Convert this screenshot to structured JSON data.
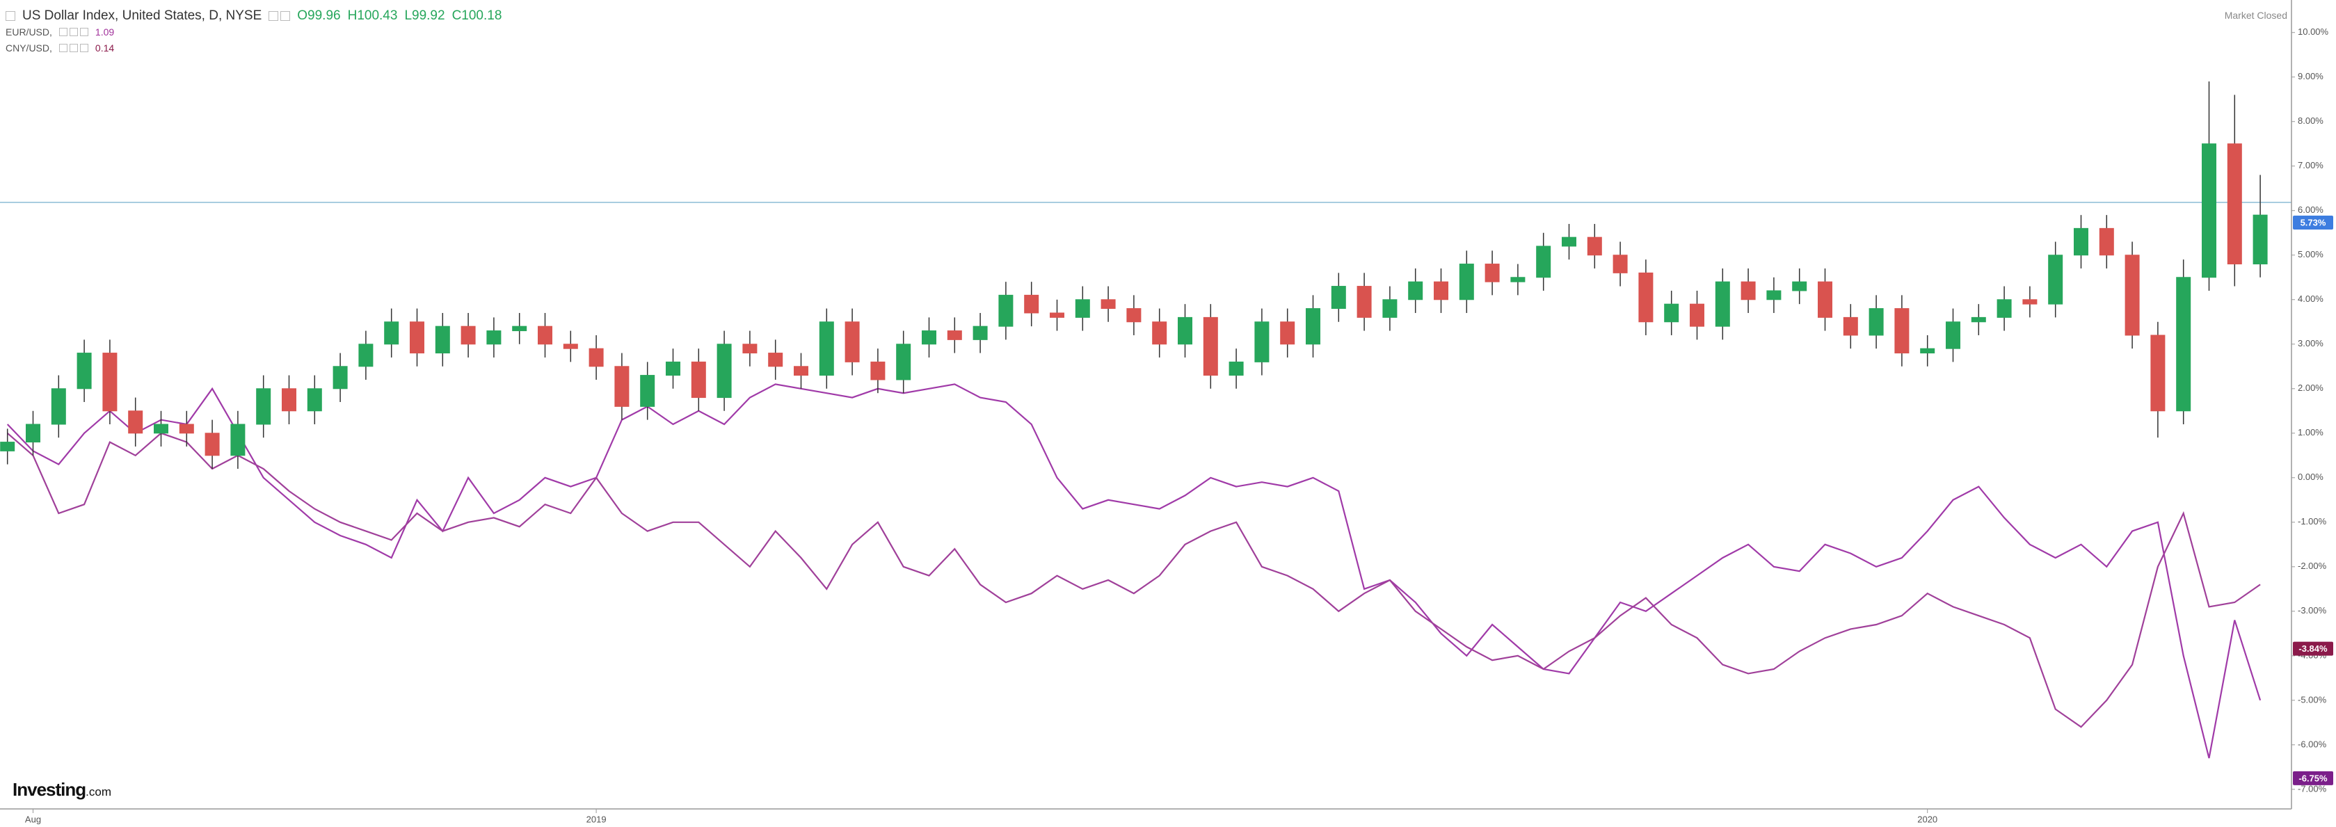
{
  "chart_data": {
    "type": "candlestick",
    "title": "US Dollar Index, United States, D, NYSE",
    "ohlc_text": [
      "O99.96",
      "H100.43",
      "L99.92",
      "C100.18"
    ],
    "status": "Market Closed",
    "brand": [
      "Investing",
      ".com"
    ],
    "up_color": "#26a65b",
    "down_color": "#d9534f",
    "categories": [
      null,
      "Aug",
      null,
      null,
      null,
      null,
      null,
      null,
      null,
      null,
      null,
      null,
      null,
      null,
      null,
      null,
      null,
      null,
      null,
      null,
      null,
      null,
      null,
      "2019",
      null,
      null,
      null,
      null,
      null,
      null,
      null,
      null,
      null,
      null,
      null,
      null,
      null,
      null,
      null,
      null,
      null,
      null,
      null,
      null,
      null,
      null,
      null,
      null,
      null,
      null,
      null,
      null,
      null,
      null,
      null,
      null,
      null,
      null,
      null,
      null,
      null,
      null,
      null,
      null,
      null,
      null,
      null,
      null,
      null,
      null,
      null,
      null,
      null,
      null,
      null,
      "2020",
      null,
      null,
      null,
      null,
      null,
      null,
      null,
      null,
      null,
      null,
      null,
      null,
      null
    ],
    "open": [
      0.6,
      0.8,
      1.2,
      2.0,
      2.8,
      1.5,
      1.0,
      1.2,
      1.0,
      0.5,
      1.2,
      2.0,
      1.5,
      2.0,
      2.5,
      3.0,
      3.5,
      2.8,
      3.4,
      3.0,
      3.3,
      3.4,
      3.0,
      2.9,
      2.5,
      1.6,
      2.3,
      2.6,
      1.8,
      3.0,
      2.8,
      2.5,
      2.3,
      3.5,
      2.6,
      2.2,
      3.0,
      3.3,
      3.1,
      3.4,
      4.1,
      3.7,
      3.6,
      4.0,
      3.8,
      3.5,
      3.0,
      3.6,
      2.3,
      2.6,
      3.5,
      3.0,
      3.8,
      4.3,
      3.6,
      4.0,
      4.4,
      4.0,
      4.8,
      4.4,
      4.5,
      5.2,
      5.4,
      5.0,
      4.6,
      3.5,
      3.9,
      3.4,
      4.4,
      4.0,
      4.2,
      4.4,
      3.6,
      3.2,
      3.8,
      2.8,
      2.9,
      3.5,
      3.6,
      4.0,
      3.9,
      5.0,
      5.6,
      5.0,
      3.2,
      1.5,
      4.5,
      7.5,
      4.8
    ],
    "high": [
      1.1,
      1.5,
      2.3,
      3.1,
      3.1,
      1.8,
      1.5,
      1.5,
      1.3,
      1.5,
      2.3,
      2.3,
      2.3,
      2.8,
      3.3,
      3.8,
      3.8,
      3.7,
      3.7,
      3.6,
      3.7,
      3.7,
      3.3,
      3.2,
      2.8,
      2.6,
      2.9,
      2.9,
      3.3,
      3.3,
      3.1,
      2.8,
      3.8,
      3.8,
      2.9,
      3.3,
      3.6,
      3.6,
      3.7,
      4.4,
      4.4,
      4.0,
      4.3,
      4.3,
      4.1,
      3.8,
      3.9,
      3.9,
      2.9,
      3.8,
      3.8,
      4.1,
      4.6,
      4.6,
      4.3,
      4.7,
      4.7,
      5.1,
      5.1,
      4.8,
      5.5,
      5.7,
      5.7,
      5.3,
      4.9,
      4.2,
      4.2,
      4.7,
      4.7,
      4.5,
      4.7,
      4.7,
      3.9,
      4.1,
      4.1,
      3.2,
      3.8,
      3.9,
      4.3,
      4.3,
      5.3,
      5.9,
      5.9,
      5.3,
      3.5,
      4.9,
      8.9,
      8.6,
      6.8
    ],
    "low": [
      0.3,
      0.5,
      0.9,
      1.7,
      1.2,
      0.7,
      0.7,
      0.7,
      0.2,
      0.2,
      0.9,
      1.2,
      1.2,
      1.7,
      2.2,
      2.7,
      2.5,
      2.5,
      2.7,
      2.7,
      3.0,
      2.7,
      2.6,
      2.2,
      1.3,
      1.3,
      2.0,
      1.5,
      1.5,
      2.5,
      2.2,
      2.0,
      2.0,
      2.3,
      1.9,
      1.9,
      2.7,
      2.8,
      2.8,
      3.1,
      3.4,
      3.3,
      3.3,
      3.5,
      3.2,
      2.7,
      2.7,
      2.0,
      2.0,
      2.3,
      2.7,
      2.7,
      3.5,
      3.3,
      3.3,
      3.7,
      3.7,
      3.7,
      4.1,
      4.1,
      4.2,
      4.9,
      4.7,
      4.3,
      3.2,
      3.2,
      3.1,
      3.1,
      3.7,
      3.7,
      3.9,
      3.3,
      2.9,
      2.9,
      2.5,
      2.5,
      2.6,
      3.2,
      3.3,
      3.6,
      3.6,
      4.7,
      4.7,
      2.9,
      0.9,
      1.2,
      4.2,
      4.3,
      4.5
    ],
    "close": [
      0.8,
      1.2,
      2.0,
      2.8,
      1.5,
      1.0,
      1.2,
      1.0,
      0.5,
      1.2,
      2.0,
      1.5,
      2.0,
      2.5,
      3.0,
      3.5,
      2.8,
      3.4,
      3.0,
      3.3,
      3.4,
      3.0,
      2.9,
      2.5,
      1.6,
      2.3,
      2.6,
      1.8,
      3.0,
      2.8,
      2.5,
      2.3,
      3.5,
      2.6,
      2.2,
      3.0,
      3.3,
      3.1,
      3.4,
      4.1,
      3.7,
      3.6,
      4.0,
      3.8,
      3.5,
      3.0,
      3.6,
      2.3,
      2.6,
      3.5,
      3.0,
      3.8,
      4.3,
      3.6,
      4.0,
      4.4,
      4.0,
      4.8,
      4.4,
      4.5,
      5.2,
      5.4,
      5.0,
      4.6,
      3.5,
      3.9,
      3.4,
      4.4,
      4.0,
      4.2,
      4.4,
      3.6,
      3.2,
      3.8,
      2.8,
      2.9,
      3.5,
      3.6,
      4.0,
      3.9,
      5.0,
      5.6,
      5.0,
      3.2,
      1.5,
      4.5,
      7.5,
      4.8,
      5.9
    ],
    "series": [
      {
        "name": "EUR/USD,",
        "legend_value": "1.09",
        "color": "#a03aa8",
        "values": [
          1.2,
          0.6,
          0.3,
          1.0,
          1.5,
          1.0,
          1.3,
          1.2,
          2.0,
          1.0,
          0.0,
          -0.5,
          -1.0,
          -1.3,
          -1.5,
          -1.8,
          -0.5,
          -1.2,
          0.0,
          -0.8,
          -0.5,
          0.0,
          -0.2,
          0.0,
          1.3,
          1.6,
          1.2,
          1.5,
          1.2,
          1.8,
          2.1,
          2.0,
          1.9,
          1.8,
          2.0,
          1.9,
          2.0,
          2.1,
          1.8,
          1.7,
          1.2,
          0.0,
          -0.7,
          -0.5,
          -0.6,
          -0.7,
          -0.4,
          0.0,
          -0.2,
          -0.1,
          -0.2,
          0.0,
          -0.3,
          -2.5,
          -2.3,
          -2.8,
          -3.5,
          -4.0,
          -3.3,
          -3.8,
          -4.3,
          -4.4,
          -3.6,
          -2.8,
          -3.0,
          -2.6,
          -2.2,
          -1.8,
          -1.5,
          -2.0,
          -2.1,
          -1.5,
          -1.7,
          -2.0,
          -1.8,
          -1.2,
          -0.5,
          -0.2,
          -0.9,
          -1.5,
          -1.8,
          -1.5,
          -2.0,
          -1.2,
          -1.0,
          -4.0,
          -6.3,
          -3.2,
          -5.0
        ]
      },
      {
        "name": "CNY/USD,",
        "legend_value": "0.14",
        "color": "#a0409a",
        "values": [
          1.0,
          0.5,
          -0.8,
          -0.6,
          0.8,
          0.5,
          1.0,
          0.8,
          0.2,
          0.5,
          0.2,
          -0.3,
          -0.7,
          -1.0,
          -1.2,
          -1.4,
          -0.8,
          -1.2,
          -1.0,
          -0.9,
          -1.1,
          -0.6,
          -0.8,
          0.0,
          -0.8,
          -1.2,
          -1.0,
          -1.0,
          -1.5,
          -2.0,
          -1.2,
          -1.8,
          -2.5,
          -1.5,
          -1.0,
          -2.0,
          -2.2,
          -1.6,
          -2.4,
          -2.8,
          -2.6,
          -2.2,
          -2.5,
          -2.3,
          -2.6,
          -2.2,
          -1.5,
          -1.2,
          -1.0,
          -2.0,
          -2.2,
          -2.5,
          -3.0,
          -2.6,
          -2.3,
          -3.0,
          -3.4,
          -3.8,
          -4.1,
          -4.0,
          -4.3,
          -3.9,
          -3.6,
          -3.1,
          -2.7,
          -3.3,
          -3.6,
          -4.2,
          -4.4,
          -4.3,
          -3.9,
          -3.6,
          -3.4,
          -3.3,
          -3.1,
          -2.6,
          -2.9,
          -3.1,
          -3.3,
          -3.6,
          -5.2,
          -5.6,
          -5.0,
          -4.2,
          -2.0,
          -0.8,
          -2.9,
          -2.8,
          -2.4
        ]
      }
    ],
    "series_value_colors": [
      "#a0309a",
      "#8b1a4a"
    ],
    "ylim": [
      -7.44,
      10.73
    ],
    "yticks": [
      {
        "value": 10,
        "label": "10.00%"
      },
      {
        "value": 9,
        "label": "9.00%"
      },
      {
        "value": 8,
        "label": "8.00%"
      },
      {
        "value": 7,
        "label": "7.00%"
      },
      {
        "value": 6,
        "label": "6.00%"
      },
      {
        "value": 5,
        "label": "5.00%"
      },
      {
        "value": 4,
        "label": "4.00%"
      },
      {
        "value": 3,
        "label": "3.00%"
      },
      {
        "value": 2,
        "label": "2.00%"
      },
      {
        "value": 1,
        "label": "1.00%"
      },
      {
        "value": 0,
        "label": "0.00%"
      },
      {
        "value": -1,
        "label": "-1.00%"
      },
      {
        "value": -2,
        "label": "-2.00%"
      },
      {
        "value": -3,
        "label": "-3.00%"
      },
      {
        "value": -4,
        "label": "-4.00%"
      },
      {
        "value": -5,
        "label": "-5.00%"
      },
      {
        "value": -6,
        "label": "-6.00%"
      },
      {
        "value": -7,
        "label": "-7.00%"
      }
    ],
    "last_values": [
      {
        "value": 5.73,
        "label": "5.73%",
        "color": "#3d7de0"
      },
      {
        "value": -3.84,
        "label": "-3.84%",
        "color": "#8b1a4a"
      },
      {
        "value": -6.75,
        "label": "-6.75%",
        "color": "#7b1f8a"
      }
    ]
  }
}
